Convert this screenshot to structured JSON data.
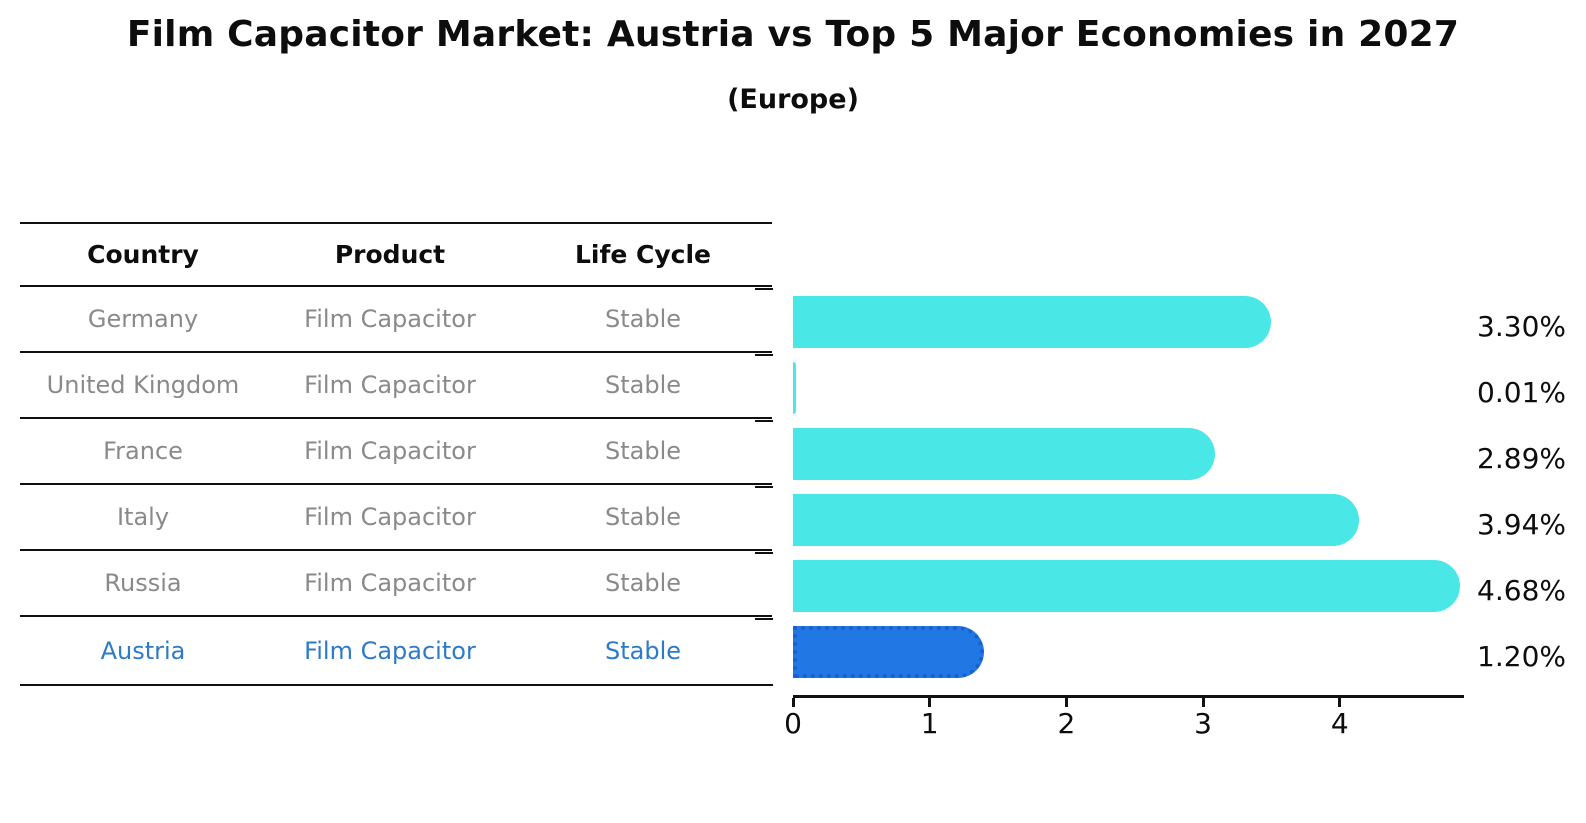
{
  "title": "Film Capacitor Market: Austria vs Top 5 Major Economies in 2027",
  "subtitle": "(Europe)",
  "table": {
    "headers": [
      "Country",
      "Product",
      "Life Cycle"
    ],
    "rows": [
      {
        "country": "Germany",
        "product": "Film Capacitor",
        "life_cycle": "Stable",
        "highlighted": false
      },
      {
        "country": "United Kingdom",
        "product": "Film Capacitor",
        "life_cycle": "Stable",
        "highlighted": false
      },
      {
        "country": "France",
        "product": "Film Capacitor",
        "life_cycle": "Stable",
        "highlighted": false
      },
      {
        "country": "Italy",
        "product": "Film Capacitor",
        "life_cycle": "Stable",
        "highlighted": false
      },
      {
        "country": "Russia",
        "product": "Film Capacitor",
        "life_cycle": "Stable",
        "highlighted": false
      },
      {
        "country": "Austria",
        "product": "Film Capacitor",
        "life_cycle": "Stable",
        "highlighted": true
      }
    ]
  },
  "chart_data": {
    "type": "bar",
    "orientation": "horizontal",
    "categories": [
      "Germany",
      "United Kingdom",
      "France",
      "Italy",
      "Russia",
      "Austria"
    ],
    "values": [
      3.3,
      0.01,
      2.89,
      3.94,
      4.68,
      1.2
    ],
    "value_labels": [
      "3.30%",
      "0.01%",
      "2.89%",
      "3.94%",
      "4.68%",
      "1.20%"
    ],
    "x_ticks": [
      0,
      1,
      2,
      3,
      4
    ],
    "xlim": [
      0,
      4.91
    ],
    "grid": false,
    "legend": false,
    "bar_color": "#4AE7E7",
    "highlight_index": 5,
    "highlight_color": "#2178E4",
    "highlight_border_color": "#1A5FCD",
    "row_text_color": "#8A8A8A",
    "highlight_text_color": "#2D7AC8"
  }
}
